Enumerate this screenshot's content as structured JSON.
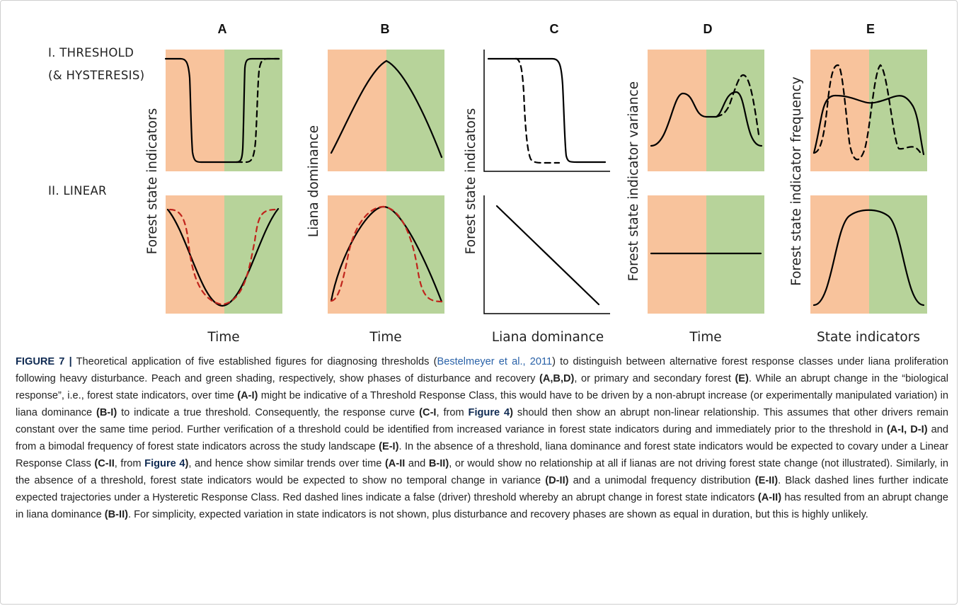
{
  "column_letters": [
    "A",
    "B",
    "C",
    "D",
    "E"
  ],
  "row_labels": {
    "threshold_line1": "I. THRESHOLD",
    "threshold_line2": "(& HYSTERESIS)",
    "linear": "II. LINEAR"
  },
  "y_axis_titles": {
    "A": "Forest state indicators",
    "B": "Liana dominance",
    "C": "Forest state indicators",
    "D": "Forest state indicator variance",
    "E": "Forest state indicator frequency"
  },
  "x_axis_titles": {
    "A": "Time",
    "B": "Time",
    "C": "Liana dominance",
    "D": "Time",
    "E": "State indicators"
  },
  "colors": {
    "disturbance_shading": "#f8c39c",
    "recovery_shading": "#b7d39a",
    "solid_line": "#000000",
    "black_dashed": "#000000",
    "red_dashed": "#c0241c"
  },
  "caption": {
    "figure_label": "FIGURE 7 |",
    "segments": [
      {
        "text": " Theoretical application of five established figures for diagnosing thresholds (",
        "style": "normal"
      },
      {
        "text": "Bestelmeyer et al., 2011",
        "style": "cite"
      },
      {
        "text": ") to distinguish between alternative forest response classes under liana proliferation following heavy disturbance. Peach and green shading, respectively, show phases of disturbance and recovery ",
        "style": "normal"
      },
      {
        "text": "(A,B,D)",
        "style": "bold"
      },
      {
        "text": ", or primary and secondary forest ",
        "style": "normal"
      },
      {
        "text": "(E)",
        "style": "bold"
      },
      {
        "text": ". While an abrupt change in the “biological response”, i.e., forest state indicators, over time ",
        "style": "normal"
      },
      {
        "text": "(A-I)",
        "style": "bold"
      },
      {
        "text": " might be indicative of a Threshold Response Class, this would have to be driven by a non-abrupt increase (or experimentally manipulated variation) in liana dominance ",
        "style": "normal"
      },
      {
        "text": "(B-I)",
        "style": "bold"
      },
      {
        "text": " to indicate a true threshold. Consequently, the response curve ",
        "style": "normal"
      },
      {
        "text": "(C-I",
        "style": "bold"
      },
      {
        "text": ", from ",
        "style": "normal"
      },
      {
        "text": "Figure 4",
        "style": "ref"
      },
      {
        "text": ")",
        "style": "bold"
      },
      {
        "text": " should then show an abrupt non-linear relationship. This assumes that other drivers remain constant over the same time period. Further verification of a threshold could be identified from increased variance in forest state indicators during and immediately prior to the threshold in ",
        "style": "normal"
      },
      {
        "text": "(A-I, D-I)",
        "style": "bold"
      },
      {
        "text": " and from a bimodal frequency of forest state indicators across the study landscape ",
        "style": "normal"
      },
      {
        "text": "(E-I)",
        "style": "bold"
      },
      {
        "text": ". In the absence of a threshold, liana dominance and forest state indicators would be expected to covary under a Linear Response Class ",
        "style": "normal"
      },
      {
        "text": "(C-II",
        "style": "bold"
      },
      {
        "text": ", from ",
        "style": "normal"
      },
      {
        "text": "Figure 4",
        "style": "ref"
      },
      {
        "text": ")",
        "style": "bold"
      },
      {
        "text": ", and hence show similar trends over time ",
        "style": "normal"
      },
      {
        "text": "(A-II",
        "style": "bold"
      },
      {
        "text": " and ",
        "style": "normal"
      },
      {
        "text": "B-II)",
        "style": "bold"
      },
      {
        "text": ", or would show no relationship at all if lianas are not driving forest state change (not illustrated). Similarly, in the absence of a threshold, forest state indicators would be expected to show no temporal change in variance ",
        "style": "normal"
      },
      {
        "text": "(D-II)",
        "style": "bold"
      },
      {
        "text": " and a unimodal frequency distribution ",
        "style": "normal"
      },
      {
        "text": "(E-II)",
        "style": "bold"
      },
      {
        "text": ". Black dashed lines further indicate expected trajectories under a Hysteretic Response Class. Red dashed lines indicate a false (driver) threshold whereby an abrupt change in forest state indicators ",
        "style": "normal"
      },
      {
        "text": "(A-II)",
        "style": "bold"
      },
      {
        "text": " has resulted from an abrupt change in liana dominance ",
        "style": "normal"
      },
      {
        "text": "(B-II)",
        "style": "bold"
      },
      {
        "text": ". For simplicity, expected variation in state indicators is not shown, plus disturbance and recovery phases are shown as equal in duration, but this is highly unlikely.",
        "style": "normal"
      }
    ]
  }
}
